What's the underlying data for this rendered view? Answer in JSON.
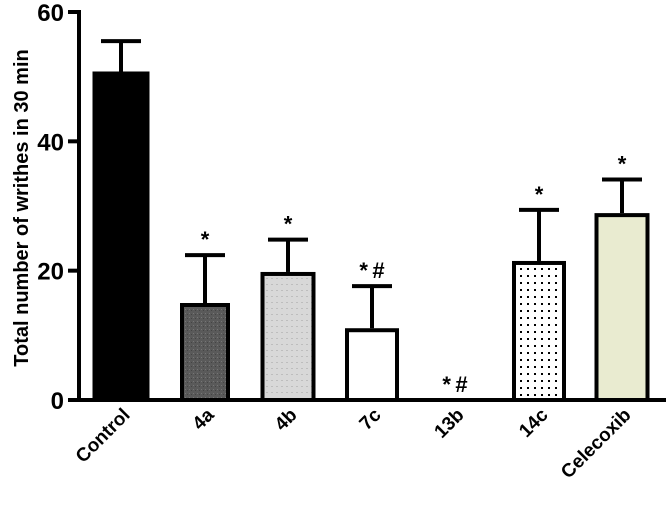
{
  "chart_data": {
    "type": "bar",
    "title": "",
    "xlabel": "",
    "ylabel": "Total number of writhes in 30 min",
    "ylim": [
      0,
      60
    ],
    "yticks": [
      0,
      20,
      40,
      60
    ],
    "grid": false,
    "legend": null,
    "categories": [
      "Control",
      "4a",
      "4b",
      "7c",
      "13b",
      "14c",
      "Celecoxib"
    ],
    "values": [
      50.8,
      15.0,
      19.8,
      11.1,
      0,
      21.5,
      28.9
    ],
    "error_upper": [
      55.5,
      22.4,
      24.8,
      17.6,
      0,
      29.4,
      34.1
    ],
    "annotations": [
      "",
      "*",
      "*",
      "*#",
      "*#",
      "*",
      "*"
    ],
    "fills": [
      "#000000",
      "#5a5a5a",
      "#d6d6d6",
      "#ffffff",
      "#ffffff",
      "dotted",
      "#e9ebd0"
    ]
  }
}
